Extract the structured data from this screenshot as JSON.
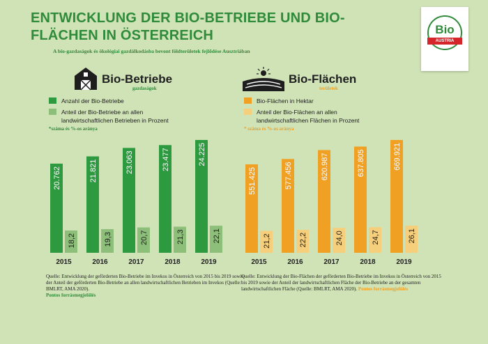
{
  "header": {
    "title": "ENTWICKLUNG DER BIO-BETRIEBE UND BIO-FLÄCHEN IN ÖSTERREICH",
    "subtitle": "A bio-gazdaságok és ökológiai gazdálkodásba bevont földterületek fejlődése Ausztriában"
  },
  "logo": {
    "name": "Bio",
    "sub": "AUSTRIA"
  },
  "colors": {
    "background": "#cfe3b6",
    "title_green": "#2f8a3a",
    "bar_dark_green": "#2d9a3f",
    "bar_light_green": "#8dbf7a",
    "bar_orange": "#f0a124",
    "bar_light_orange": "#f6cf7c"
  },
  "left": {
    "icon": "barn-icon",
    "heading": "Bio-Betriebe",
    "heading_sub": "gazdaságok",
    "legend": [
      "Anzahl der Bio-Betriebe",
      "Anteil der Bio-Betriebe an allen landwirtschaftlichen Betrieben in Prozent"
    ],
    "note": "*száma és %-os aránya",
    "source": "Quelle: Entwicklung der geförderten Bio-Betriebe im Invekos in Österreich von 2015 bis 2019 sowie der Anteil der geförderten Bio-Betriebe an allen landwirtschaftlichen Betrieben im Invekos (Quelle: BMLRT, AMA 2020).",
    "source_hu": "Pontos forrásmegjelölés"
  },
  "right": {
    "icon": "field-sun-icon",
    "heading": "Bio-Flächen",
    "heading_sub": "területek",
    "legend": [
      "Bio-Flächen in Hektar",
      "Anteil der Bio-Flächen an allen landwirtschaftlichen Flächen in Prozent"
    ],
    "note": "* száma és %-os aránya",
    "source": "Quelle: Entwicklung der Bio-Flächen der geförderten Bio-Betriebe im Invekos in Österreich von 2015 bis 2019 sowie der Anteil der landwirtschaftlichen Fläche der Bio-Betriebe an der gesamten landwirtschaftlichen Fläche (Quelle: BMLRT, AMA 2020).",
    "source_hu": "Pontos forrásmegjelölés"
  },
  "chart_data": [
    {
      "type": "bar",
      "title": "Bio-Betriebe",
      "categories": [
        "2015",
        "2016",
        "2017",
        "2018",
        "2019"
      ],
      "series": [
        {
          "name": "Anzahl der Bio-Betriebe",
          "values": [
            20762,
            21821,
            23063,
            23477,
            24225
          ],
          "labels": [
            "20.762",
            "21.821",
            "23.063",
            "23.477",
            "24.225"
          ]
        },
        {
          "name": "Anteil der Bio-Betriebe an allen landwirtschaftlichen Betrieben in Prozent",
          "values": [
            18.2,
            19.3,
            20.7,
            21.3,
            22.1
          ],
          "labels": [
            "18,2",
            "19,3",
            "20,7",
            "21,3",
            "22,1"
          ]
        }
      ]
    },
    {
      "type": "bar",
      "title": "Bio-Flächen",
      "categories": [
        "2015",
        "2016",
        "2017",
        "2018",
        "2019"
      ],
      "series": [
        {
          "name": "Bio-Flächen in Hektar",
          "values": [
            551425,
            577456,
            620987,
            637805,
            669921
          ],
          "labels": [
            "551.425",
            "577.456",
            "620.987",
            "637.805",
            "669.921"
          ]
        },
        {
          "name": "Anteil der Bio-Flächen an allen landwirtschaftlichen Flächen in Prozent",
          "values": [
            21.2,
            22.2,
            24.0,
            24.7,
            26.1
          ],
          "labels": [
            "21,2",
            "22,2",
            "24,0",
            "24,7",
            "26,1"
          ]
        }
      ]
    }
  ]
}
